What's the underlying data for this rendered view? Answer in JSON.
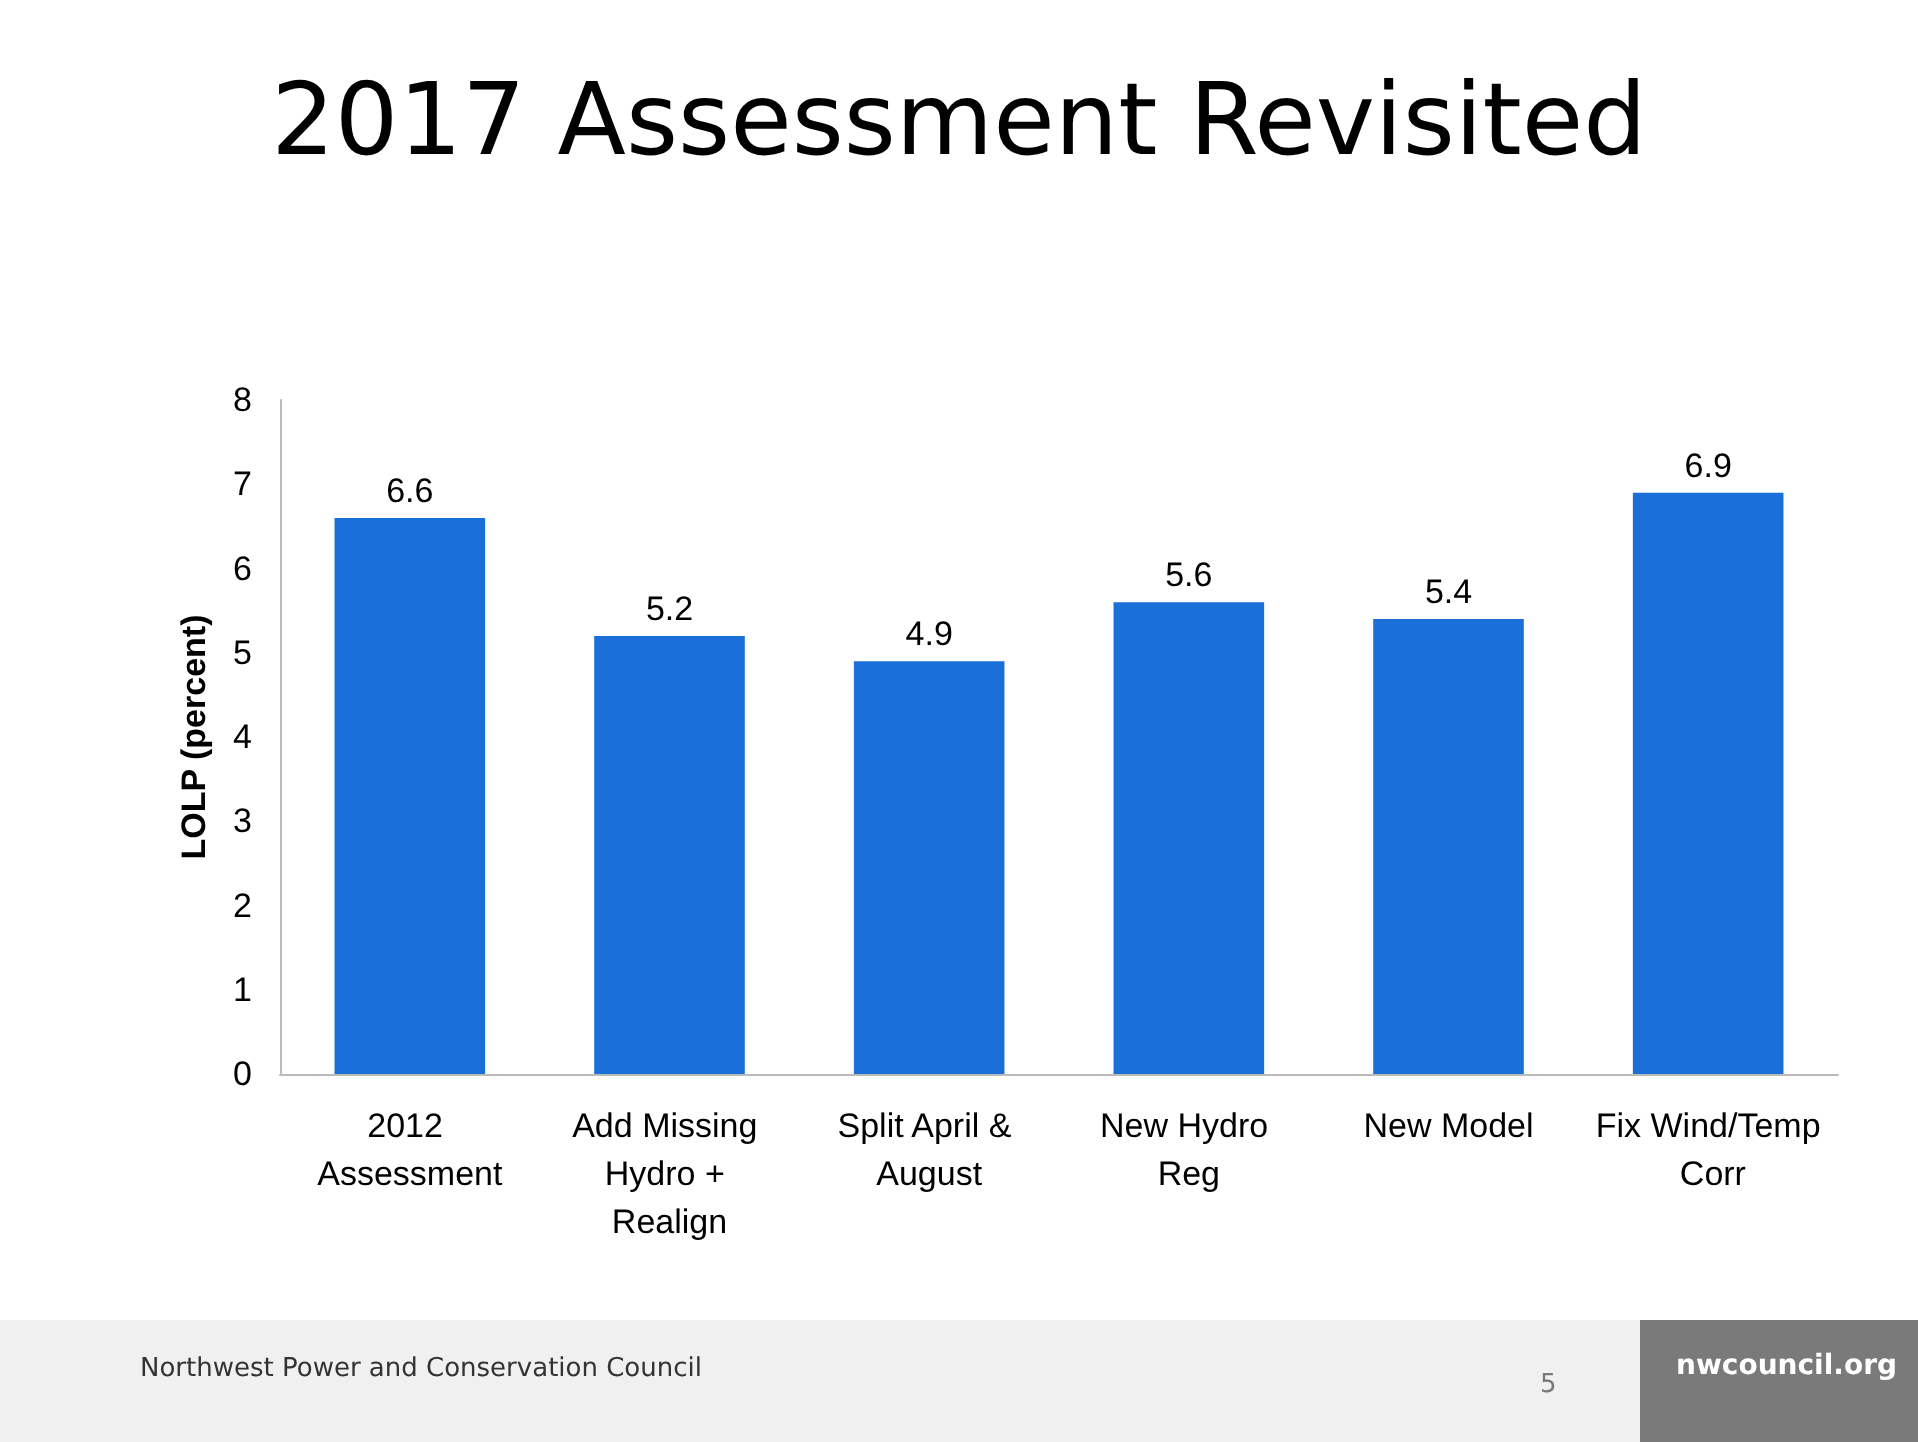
{
  "chart_data": {
    "type": "bar",
    "title": "2017 Assessment Revisited",
    "ylabel": "LOLP (percent)",
    "categories": [
      "2012 Assessment",
      "Add Missing Hydro + Realign",
      "Split April & August",
      "New Hydro Reg",
      "New Model",
      "Fix Wind/Temp Corr"
    ],
    "values": [
      6.6,
      5.2,
      4.9,
      5.6,
      5.4,
      6.9
    ],
    "color": "#1a6fd9",
    "ylim": [
      0,
      8
    ],
    "yticks": [
      0,
      1,
      2,
      3,
      4,
      5,
      6,
      7,
      8
    ],
    "grid": false,
    "data_labels": true,
    "annotations": [
      "Northwest Power and Conservation Council",
      "5",
      "nwcouncil.org"
    ]
  }
}
